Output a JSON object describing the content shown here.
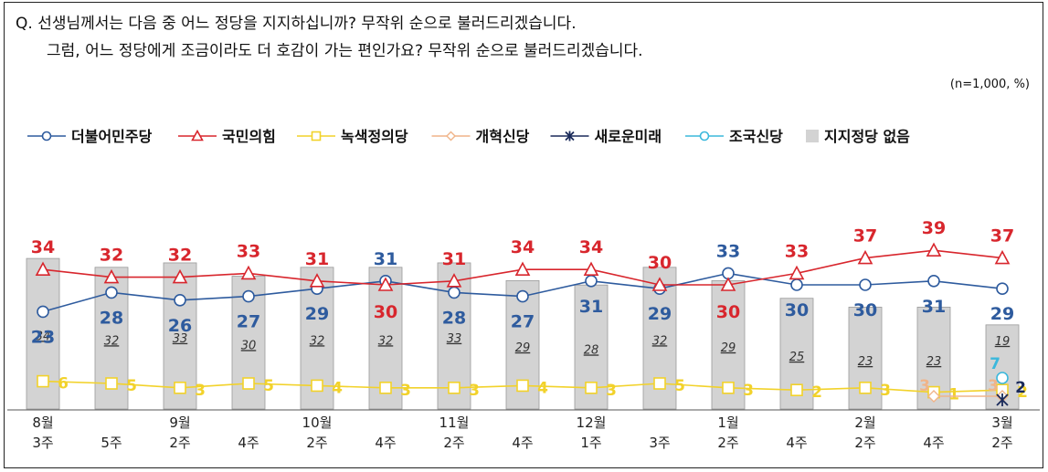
{
  "question": {
    "line1": "Q. 선생님께서는 다음 중 어느 정당을 지지하십니까? 무작위 순으로 불러드리겠습니다.",
    "line2": "그럼, 어느 정당에게 조금이라도 더 호감이 가는 편인가요? 무작위 순으로 불러드리겠습니다.",
    "note": "(n=1,000, %)"
  },
  "colors": {
    "democratic": "#2e5b9e",
    "ppp": "#d8262d",
    "green_justice": "#f2d22a",
    "reform": "#f0b489",
    "new_future": "#1a2a5a",
    "rebuilding": "#3bb8dc",
    "none_bar": "#d3d3d3"
  },
  "chart_data": {
    "type": "line",
    "categories": [
      [
        "8월",
        "3주"
      ],
      [
        "",
        "5주"
      ],
      [
        "9월",
        "2주"
      ],
      [
        "",
        "4주"
      ],
      [
        "10월",
        "2주"
      ],
      [
        "",
        "4주"
      ],
      [
        "11월",
        "2주"
      ],
      [
        "",
        "4주"
      ],
      [
        "12월",
        "1주"
      ],
      [
        "",
        "3주"
      ],
      [
        "1월",
        "2주"
      ],
      [
        "",
        "4주"
      ],
      [
        "2월",
        "2주"
      ],
      [
        "",
        "4주"
      ],
      [
        "3월",
        "2주"
      ]
    ],
    "series": [
      {
        "name": "더불어민주당",
        "key": "democratic",
        "marker": "circle",
        "values": [
          23,
          28,
          26,
          27,
          29,
          31,
          28,
          27,
          31,
          29,
          33,
          30,
          30,
          31,
          29
        ]
      },
      {
        "name": "국민의힘",
        "key": "ppp",
        "marker": "triangle",
        "values": [
          34,
          32,
          32,
          33,
          31,
          30,
          31,
          34,
          34,
          30,
          30,
          33,
          37,
          39,
          37
        ]
      },
      {
        "name": "녹색정의당",
        "key": "green_justice",
        "marker": "square",
        "values": [
          6,
          5,
          3,
          5,
          4,
          3,
          3,
          4,
          3,
          5,
          3,
          2,
          3,
          1,
          2
        ]
      },
      {
        "name": "개혁신당",
        "key": "reform",
        "marker": "diamond",
        "values": [
          null,
          null,
          null,
          null,
          null,
          null,
          null,
          null,
          null,
          null,
          null,
          null,
          null,
          3,
          3
        ]
      },
      {
        "name": "새로운미래",
        "key": "new_future",
        "marker": "star",
        "values": [
          null,
          null,
          null,
          null,
          null,
          null,
          null,
          null,
          null,
          null,
          null,
          null,
          null,
          null,
          2
        ]
      },
      {
        "name": "조국신당",
        "key": "rebuilding",
        "marker": "circle",
        "values": [
          null,
          null,
          null,
          null,
          null,
          null,
          null,
          null,
          null,
          null,
          null,
          null,
          null,
          null,
          7
        ]
      }
    ],
    "bars": {
      "name": "지지정당 없음",
      "key": "none_bar",
      "values": [
        34,
        32,
        33,
        30,
        32,
        32,
        33,
        29,
        28,
        32,
        29,
        25,
        23,
        23,
        19
      ]
    },
    "ylim": [
      0,
      45
    ],
    "legend": "top"
  }
}
